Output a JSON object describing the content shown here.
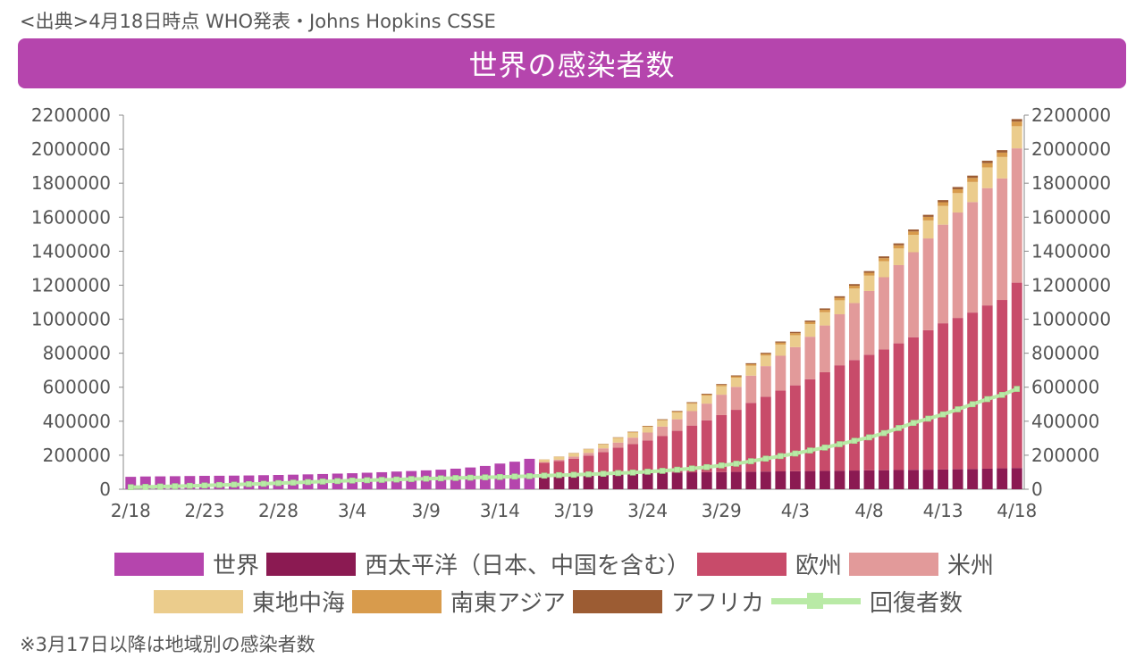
{
  "header": {
    "source": "<出典>4月18日時点 WHO発表・Johns Hopkins CSSE",
    "title": "世界の感染者数"
  },
  "footer": {
    "note": "※3月17日以降は地域別の感染者数"
  },
  "legend": {
    "row1": [
      "世界",
      "西太平洋（日本、中国を含む）",
      "欧州",
      "米州"
    ],
    "row2": [
      "東地中海",
      "南東アジア",
      "アフリカ",
      "回復者数"
    ]
  },
  "colors": {
    "world": "#b545ad",
    "western_pacific": "#8b1a52",
    "europe": "#c84b6a",
    "americas": "#e29a9a",
    "eastern_mediterranean": "#ebcc8c",
    "southeast_asia": "#d89b4c",
    "africa": "#9c5c33",
    "recovered": "#b9eaa6",
    "banner": "#b545ad"
  },
  "chart_data": {
    "type": "bar",
    "stacked": true,
    "x": [
      "2/18",
      "2/19",
      "2/20",
      "2/21",
      "2/22",
      "2/23",
      "2/24",
      "2/25",
      "2/26",
      "2/27",
      "2/28",
      "2/29",
      "3/1",
      "3/2",
      "3/3",
      "3/4",
      "3/5",
      "3/6",
      "3/7",
      "3/8",
      "3/9",
      "3/10",
      "3/11",
      "3/12",
      "3/13",
      "3/14",
      "3/15",
      "3/16",
      "3/17",
      "3/18",
      "3/19",
      "3/20",
      "3/21",
      "3/22",
      "3/23",
      "3/24",
      "3/25",
      "3/26",
      "3/27",
      "3/28",
      "3/29",
      "3/30",
      "3/31",
      "4/1",
      "4/2",
      "4/3",
      "4/4",
      "4/5",
      "4/6",
      "4/7",
      "4/8",
      "4/9",
      "4/10",
      "4/11",
      "4/12",
      "4/13",
      "4/14",
      "4/15",
      "4/16",
      "4/17",
      "4/18"
    ],
    "x_tick_labels": [
      "2/18",
      "2/23",
      "2/28",
      "3/4",
      "3/9",
      "3/14",
      "3/19",
      "3/24",
      "3/29",
      "4/3",
      "4/8",
      "4/13",
      "4/18"
    ],
    "y_ticks": [
      "0",
      "200000",
      "400000",
      "600000",
      "800000",
      "1000000",
      "1200000",
      "1400000",
      "1600000",
      "1800000",
      "2000000",
      "2200000"
    ],
    "ylim": [
      0,
      2200000
    ],
    "dual_y_axis": true,
    "series": [
      {
        "name": "世界",
        "values": [
          73000,
          75000,
          75700,
          76700,
          77800,
          78800,
          79300,
          80100,
          81000,
          82700,
          84000,
          85700,
          87500,
          89600,
          92000,
          94200,
          97100,
          100000,
          104000,
          107000,
          111000,
          115000,
          121000,
          128000,
          137000,
          151000,
          162000,
          179000,
          0,
          0,
          0,
          0,
          0,
          0,
          0,
          0,
          0,
          0,
          0,
          0,
          0,
          0,
          0,
          0,
          0,
          0,
          0,
          0,
          0,
          0,
          0,
          0,
          0,
          0,
          0,
          0,
          0,
          0,
          0,
          0,
          0
        ]
      },
      {
        "name": "西太平洋（日本、中国を含む）",
        "values": [
          0,
          0,
          0,
          0,
          0,
          0,
          0,
          0,
          0,
          0,
          0,
          0,
          0,
          0,
          0,
          0,
          0,
          0,
          0,
          0,
          0,
          0,
          0,
          0,
          0,
          0,
          0,
          0,
          90000,
          91000,
          92000,
          93000,
          93500,
          94500,
          95500,
          96500,
          97500,
          98500,
          99500,
          100500,
          101000,
          102000,
          103000,
          104000,
          105000,
          106000,
          107000,
          108000,
          109000,
          110000,
          111000,
          112000,
          113000,
          114000,
          115000,
          116000,
          117500,
          119000,
          121000,
          123000,
          125000
        ]
      },
      {
        "name": "欧州",
        "values": [
          0,
          0,
          0,
          0,
          0,
          0,
          0,
          0,
          0,
          0,
          0,
          0,
          0,
          0,
          0,
          0,
          0,
          0,
          0,
          0,
          0,
          0,
          0,
          0,
          0,
          0,
          0,
          0,
          65000,
          75000,
          88000,
          105000,
          125000,
          150000,
          170000,
          190000,
          215000,
          245000,
          275000,
          305000,
          335000,
          365000,
          405000,
          440000,
          475000,
          505000,
          540000,
          580000,
          620000,
          650000,
          680000,
          710000,
          745000,
          780000,
          820000,
          860000,
          890000,
          920000,
          960000,
          990000,
          1090000
        ]
      },
      {
        "name": "米州",
        "values": [
          0,
          0,
          0,
          0,
          0,
          0,
          0,
          0,
          0,
          0,
          0,
          0,
          0,
          0,
          0,
          0,
          0,
          0,
          0,
          0,
          0,
          0,
          0,
          0,
          0,
          0,
          0,
          0,
          5000,
          8000,
          12000,
          16000,
          22000,
          30000,
          38000,
          47000,
          56000,
          68000,
          85000,
          98000,
          120000,
          135000,
          160000,
          180000,
          205000,
          225000,
          250000,
          275000,
          300000,
          335000,
          375000,
          425000,
          460000,
          500000,
          540000,
          580000,
          620000,
          650000,
          690000,
          715000,
          790000
        ]
      },
      {
        "name": "東地中海",
        "values": [
          0,
          0,
          0,
          0,
          0,
          0,
          0,
          0,
          0,
          0,
          0,
          0,
          0,
          0,
          0,
          0,
          0,
          0,
          0,
          0,
          0,
          0,
          0,
          0,
          0,
          0,
          0,
          0,
          15000,
          17000,
          19500,
          21000,
          24000,
          27000,
          30000,
          33000,
          36000,
          40000,
          43000,
          47000,
          50000,
          54000,
          58000,
          62000,
          66000,
          70000,
          74000,
          78000,
          82000,
          86000,
          90000,
          94000,
          98000,
          102000,
          106000,
          110000,
          114000,
          118000,
          122000,
          126000,
          130000
        ]
      },
      {
        "name": "南東アジア",
        "values": [
          0,
          0,
          0,
          0,
          0,
          0,
          0,
          0,
          0,
          0,
          0,
          0,
          0,
          0,
          0,
          0,
          0,
          0,
          0,
          0,
          0,
          0,
          0,
          0,
          0,
          0,
          0,
          0,
          500,
          1000,
          1200,
          1500,
          2000,
          2500,
          3000,
          3500,
          4000,
          5000,
          5500,
          6500,
          7500,
          8000,
          9000,
          10000,
          11000,
          12000,
          13000,
          14000,
          15000,
          16000,
          17000,
          18000,
          19000,
          20000,
          21000,
          22000,
          23000,
          24000,
          25000,
          26000,
          27000
        ]
      },
      {
        "name": "アフリカ",
        "values": [
          0,
          0,
          0,
          0,
          0,
          0,
          0,
          0,
          0,
          0,
          0,
          0,
          0,
          0,
          0,
          0,
          0,
          0,
          0,
          0,
          0,
          0,
          0,
          0,
          0,
          0,
          0,
          0,
          300,
          500,
          800,
          1000,
          1300,
          1600,
          2000,
          2500,
          3000,
          3500,
          4000,
          4500,
          5000,
          5500,
          6000,
          6500,
          7000,
          7500,
          8000,
          8500,
          9000,
          9500,
          10000,
          10500,
          11000,
          11500,
          12000,
          12500,
          13000,
          13500,
          14000,
          14500,
          15000
        ]
      },
      {
        "name": "回復者数",
        "type": "line",
        "values": [
          12000,
          14000,
          16000,
          18000,
          20000,
          22000,
          25000,
          27000,
          30000,
          32000,
          36000,
          39000,
          42000,
          45000,
          48000,
          51000,
          53000,
          55000,
          57000,
          60000,
          62000,
          64000,
          66000,
          68000,
          70000,
          72000,
          75000,
          77000,
          80000,
          83000,
          85000,
          88000,
          91000,
          95000,
          98000,
          103000,
          108000,
          115000,
          122000,
          130000,
          140000,
          150000,
          165000,
          180000,
          195000,
          210000,
          228000,
          245000,
          265000,
          285000,
          305000,
          330000,
          360000,
          390000,
          415000,
          440000,
          470000,
          500000,
          530000,
          555000,
          590000
        ]
      }
    ]
  }
}
